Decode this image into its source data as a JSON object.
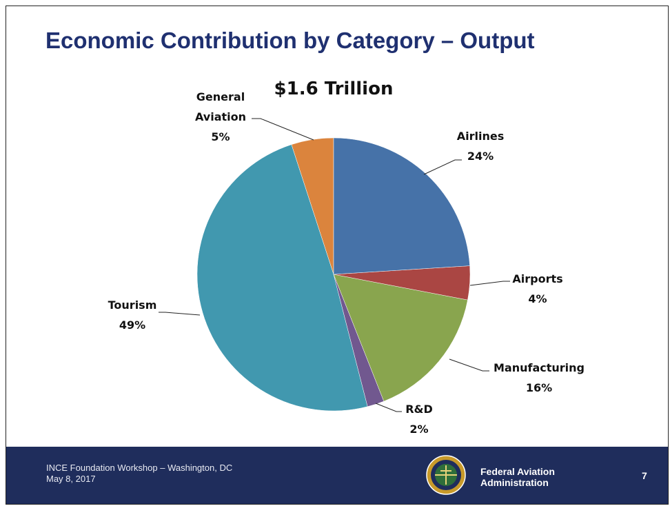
{
  "title": "Economic Contribution by Category – Output",
  "chart_data": {
    "type": "pie",
    "subtitle": "$1.6 Trillion",
    "categories": [
      "Airlines",
      "Airports",
      "Manufacturing",
      "R&D",
      "Tourism",
      "General Aviation"
    ],
    "values": [
      24,
      4,
      16,
      2,
      49,
      5
    ],
    "value_labels": [
      "24%",
      "4%",
      "16%",
      "2%",
      "49%",
      "5%"
    ],
    "colors": [
      "#4672a8",
      "#aa4643",
      "#89a54e",
      "#71588f",
      "#4198af",
      "#db843d"
    ]
  },
  "footer": {
    "event": "INCE Foundation Workshop – Washington, DC",
    "date": "May 8, 2017",
    "agency": "Federal Aviation Administration",
    "page": "7"
  }
}
